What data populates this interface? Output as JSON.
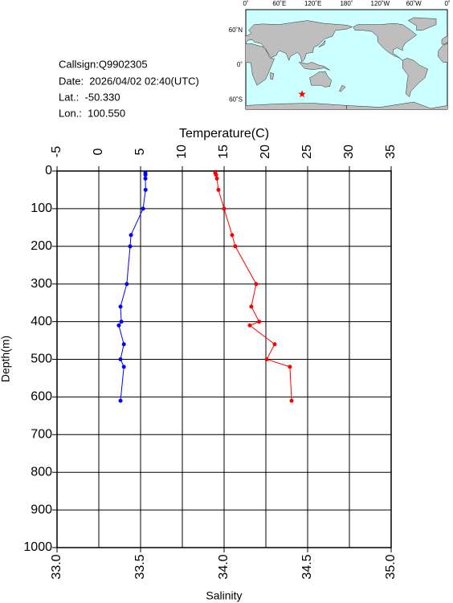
{
  "info": {
    "callsign": "Callsign:Q9902305",
    "date": "Date:  2026/04/02 02:40(UTC)",
    "lat": "Lat.:  -50.330",
    "lon": "Lon.:  100.550"
  },
  "map": {
    "lon_labels": [
      "0˚",
      "60˚E",
      "120˚E",
      "180˚",
      "120˚W",
      "60˚W",
      "0˚"
    ],
    "lat_labels": [
      "60˚N",
      "0˚",
      "60˚S"
    ]
  },
  "chart_data": {
    "type": "line",
    "xlabel": "Temperature(C)",
    "x2label": "Salinity",
    "ylabel": "Depth(m)",
    "xlim": [
      -5,
      35
    ],
    "xticks": [
      -5,
      0,
      5,
      10,
      15,
      20,
      25,
      30,
      35
    ],
    "x2lim": [
      33,
      35
    ],
    "x2ticks": [
      {
        "value": 33,
        "label": "33.0"
      },
      {
        "value": 33.5,
        "label": "33.5"
      },
      {
        "value": 34,
        "label": "34.0"
      },
      {
        "value": 34.5,
        "label": "34.5"
      },
      {
        "value": 35,
        "label": "35.0"
      }
    ],
    "ylim": [
      0,
      1000
    ],
    "y_inverted": true,
    "yticks": [
      0,
      100,
      200,
      300,
      400,
      500,
      600,
      700,
      800,
      900,
      1000
    ],
    "grid": true,
    "depths": [
      5,
      10,
      20,
      50,
      100,
      170,
      200,
      300,
      360,
      400,
      410,
      460,
      500,
      520,
      610
    ],
    "series": [
      {
        "color": "#0000ff",
        "axis": "x",
        "values": [
          5.58,
          5.58,
          5.58,
          5.6,
          5.3,
          3.85,
          3.75,
          3.35,
          2.6,
          2.7,
          2.4,
          3.0,
          2.6,
          3.0,
          2.6
        ]
      },
      {
        "color": "#ff0000",
        "axis": "x2",
        "values": [
          33.947,
          33.952,
          33.957,
          33.966,
          34.0,
          34.048,
          34.067,
          34.192,
          34.163,
          34.21,
          34.154,
          34.303,
          34.255,
          34.394,
          34.404
        ]
      }
    ]
  }
}
